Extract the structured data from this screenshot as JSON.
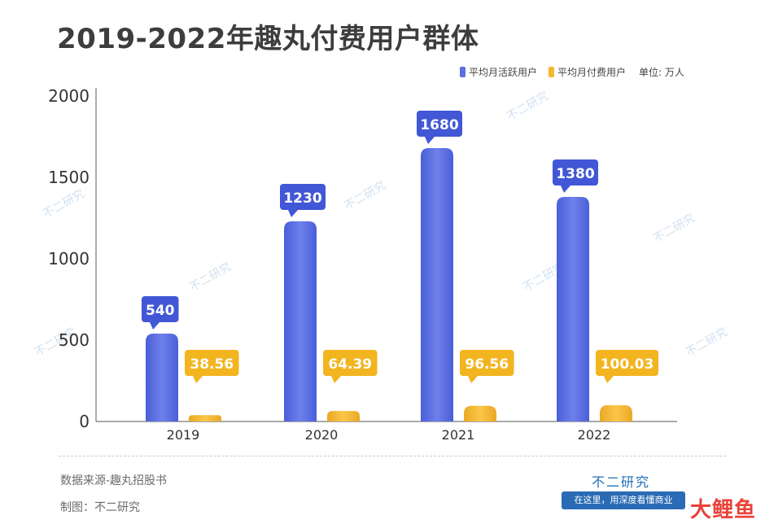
{
  "title": "2019-2022年趣丸付费用户群体",
  "legend": {
    "items": [
      {
        "label": "平均月活跃用户",
        "color": "#5b6fe0"
      },
      {
        "label": "平均月付费用户",
        "color": "#f5b82e"
      }
    ],
    "unit": "单位: 万人"
  },
  "chart_data": {
    "type": "bar",
    "title": "2019-2022年趣丸付费用户群体",
    "categories": [
      "2019",
      "2020",
      "2021",
      "2022"
    ],
    "series": [
      {
        "name": "平均月活跃用户",
        "values": [
          540,
          1230,
          1680,
          1380
        ],
        "labels": [
          "540",
          "1230",
          "1680",
          "1380"
        ],
        "color": "#5b6fe0",
        "label_bg": "#4157d6"
      },
      {
        "name": "平均月付费用户",
        "values": [
          38.56,
          64.39,
          96.56,
          100.03
        ],
        "labels": [
          "38.56",
          "64.39",
          "96.56",
          "100.03"
        ],
        "color": "#f5b82e",
        "label_bg": "#f2b51f"
      }
    ],
    "yticks": [
      "2000",
      "1500",
      "1000",
      "500",
      "0"
    ],
    "ylim": [
      0,
      2000
    ],
    "grid": false,
    "legend_position": "top-right"
  },
  "footer": {
    "source": "数据来源-趣丸招股书",
    "maker": "制图：不二研究",
    "brand": "不二研究",
    "slogan": "在这里，用深度看懂商业"
  },
  "watermark": "不二研究",
  "corner_logo": "大鲤鱼"
}
